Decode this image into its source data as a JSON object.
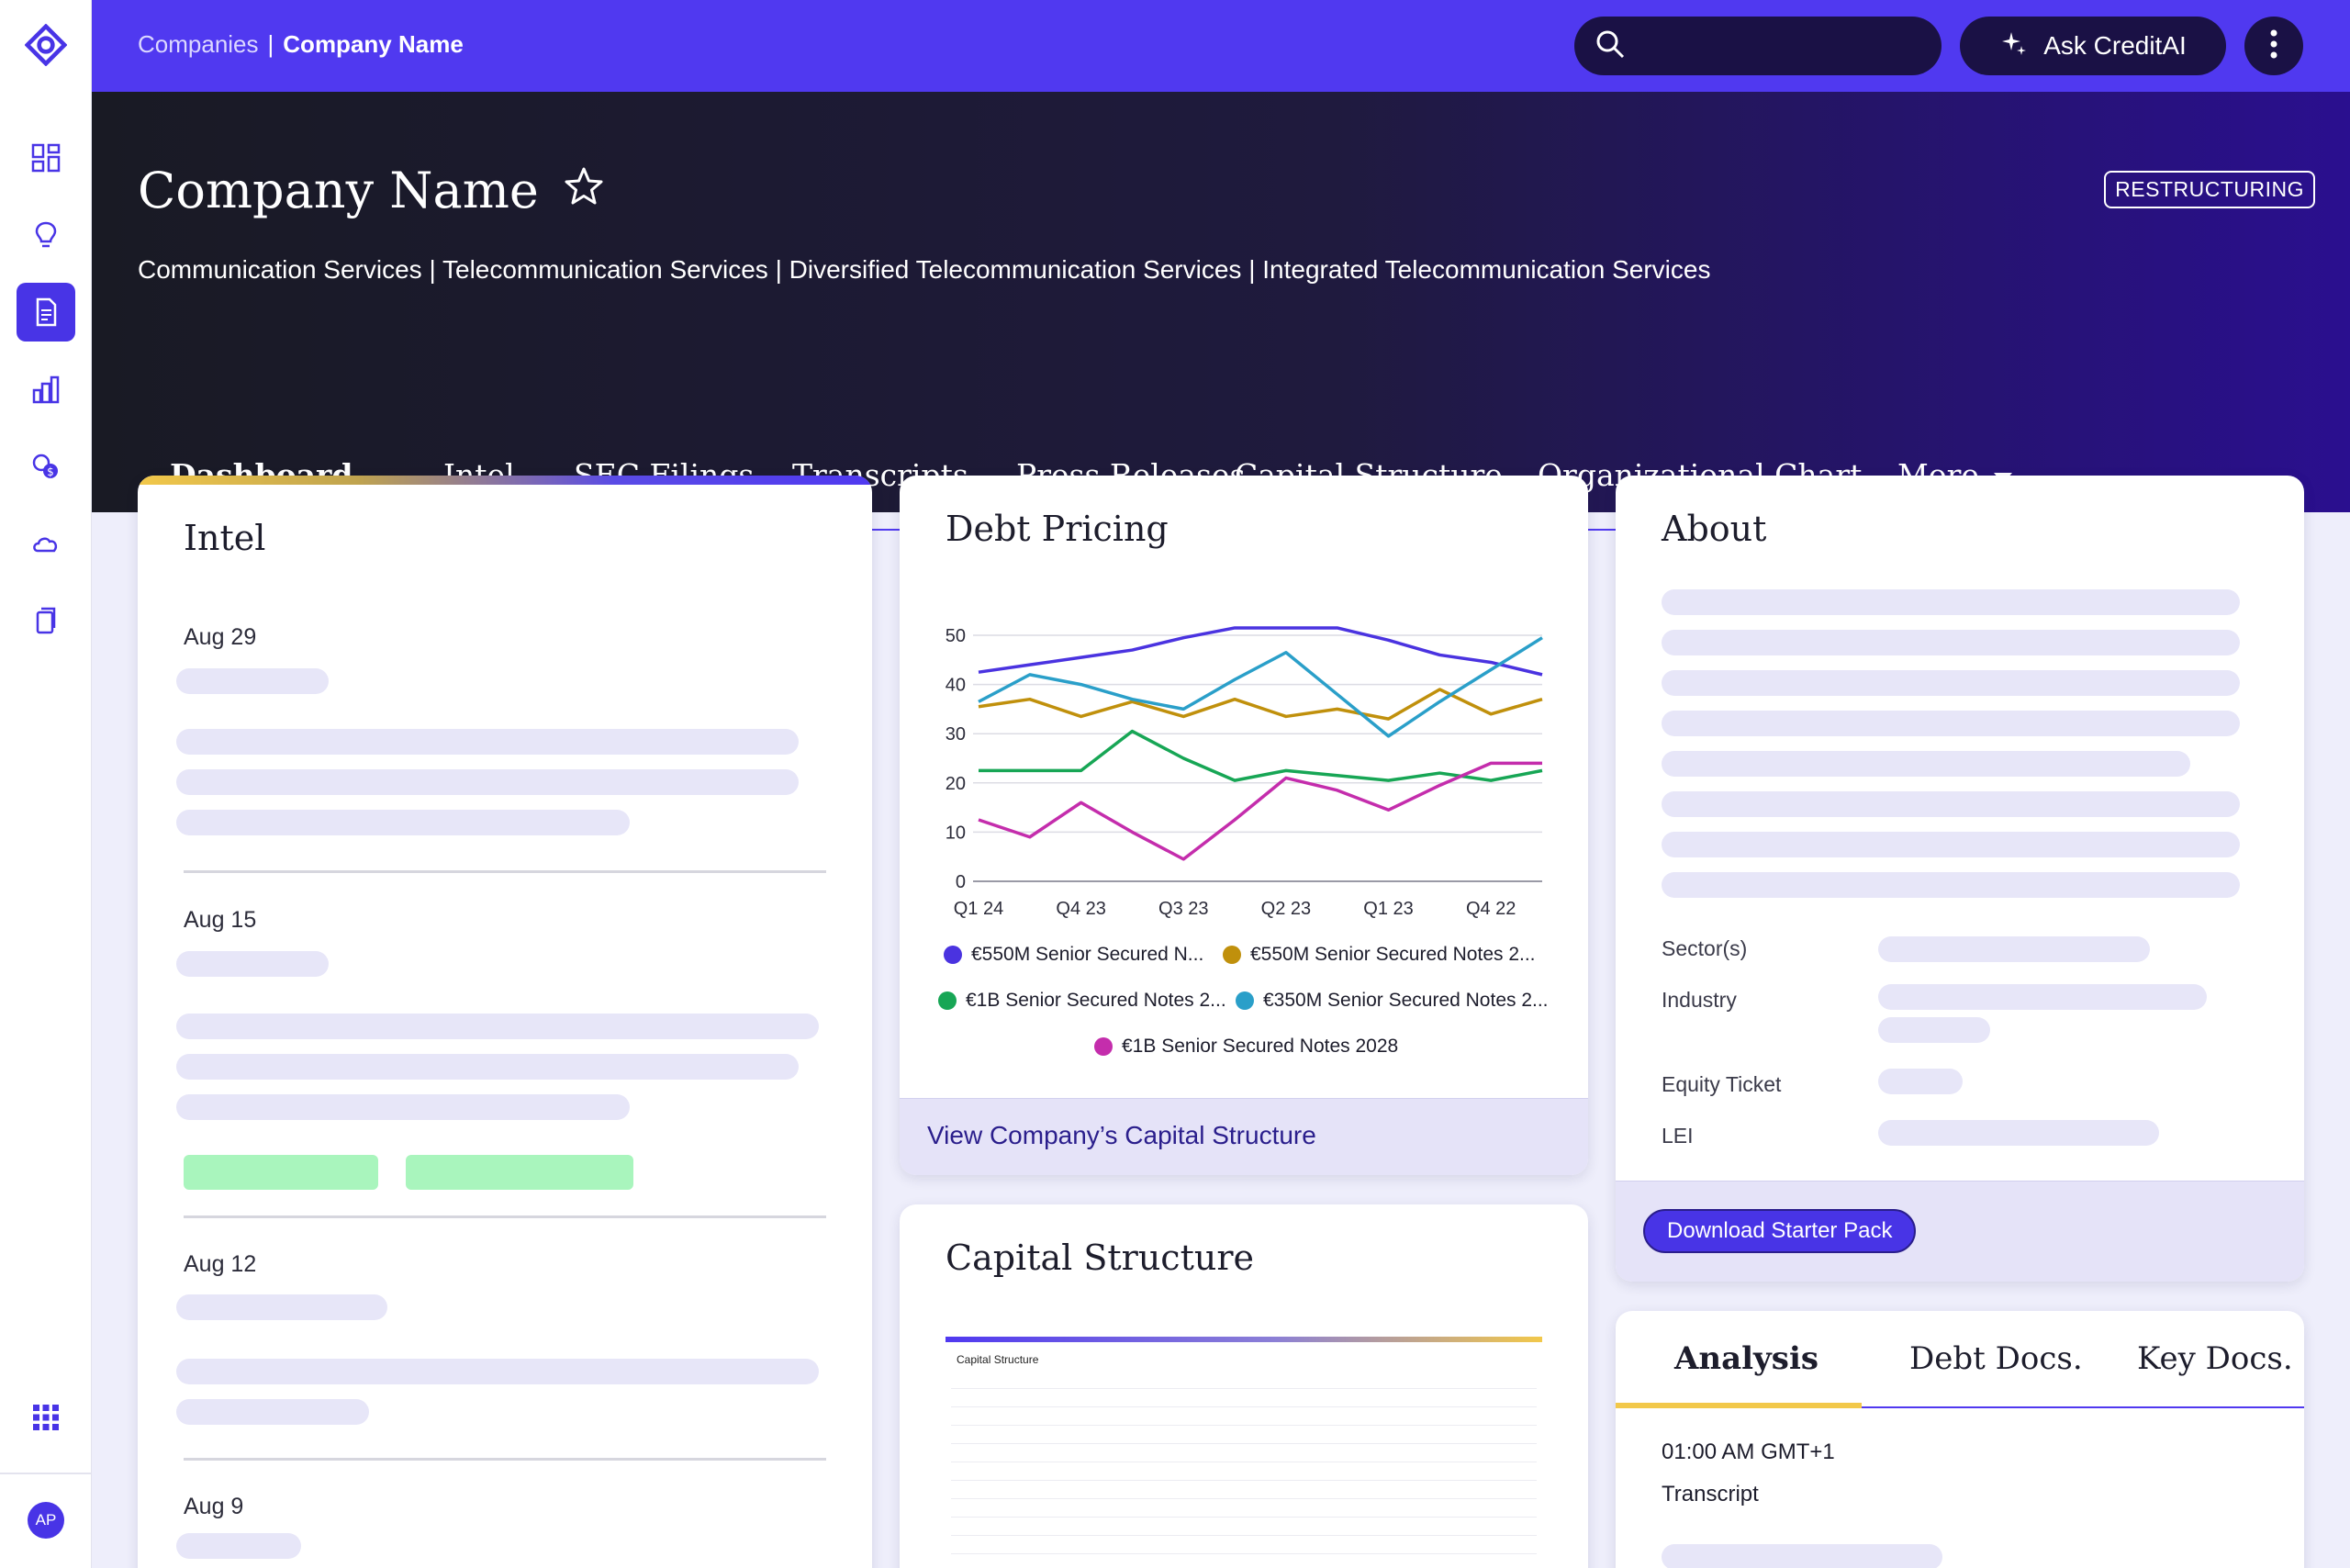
{
  "sidebar": {
    "items": [
      {
        "icon": "dashboard-grid-icon"
      },
      {
        "icon": "lightbulb-icon"
      },
      {
        "icon": "document-icon",
        "active": true
      },
      {
        "icon": "buildings-chart-icon"
      },
      {
        "icon": "coins-dollar-icon"
      },
      {
        "icon": "cloud-icon"
      },
      {
        "icon": "copy-pages-icon"
      }
    ],
    "apps_icon": "apps-grid-icon",
    "avatar_initials": "AP"
  },
  "topbar": {
    "breadcrumb_root": "Companies",
    "breadcrumb_sep": "|",
    "breadcrumb_current": "Company Name",
    "search_placeholder": "",
    "ask_label": "Ask CreditAI"
  },
  "hero": {
    "title": "Company Name",
    "badge": "RESTRUCTURING",
    "sectors": "Communication Services | Telecommunication Services | Diversified Telecommunication Services | Integrated Telecommunication Services"
  },
  "tabs": [
    "Dashboard",
    "Intel",
    "SEC Filings",
    "Transcripts",
    "Press Releases",
    "Capital Structure",
    "Organizational Chart",
    "More"
  ],
  "intel": {
    "title": "Intel",
    "dates": [
      "Aug 29",
      "Aug 15",
      "Aug 12",
      "Aug 9"
    ]
  },
  "debt_pricing": {
    "title": "Debt Pricing",
    "footer_link": "View Company’s Capital Structure"
  },
  "chart_data": {
    "type": "line",
    "title": "Debt Pricing",
    "xlabel": "",
    "ylabel": "",
    "ylim": [
      0,
      50
    ],
    "yticks": [
      0,
      10,
      20,
      30,
      40,
      50
    ],
    "x": [
      "Q1 24",
      "",
      "Q4 23",
      "",
      "Q3 23",
      "",
      "Q2 23",
      "",
      "Q1 23",
      "",
      "Q4 22",
      ""
    ],
    "xtick_labels": [
      "Q1 24",
      "Q4 23",
      "Q3 23",
      "Q2 23",
      "Q1 23",
      "Q4 22"
    ],
    "grid": true,
    "legend_position": "bottom",
    "series": [
      {
        "name": "€550M Senior Secured N...",
        "color": "#4a33e0",
        "values": [
          42.5,
          44,
          45.5,
          47,
          49.5,
          51.5,
          51.5,
          51.5,
          49,
          46,
          44.5,
          42
        ]
      },
      {
        "name": "€550M Senior Secured Notes 2...",
        "color": "#c0900c",
        "values": [
          35.5,
          37,
          33.5,
          36.5,
          33.5,
          37,
          33.5,
          35,
          33,
          39,
          34,
          37
        ]
      },
      {
        "name": "€1B Senior Secured Notes 2...",
        "color": "#17a655",
        "values": [
          22.5,
          22.5,
          22.5,
          30.5,
          25,
          20.5,
          22.5,
          21.5,
          20.5,
          22,
          20.5,
          22.5
        ]
      },
      {
        "name": "€350M Senior Secured Notes 2...",
        "color": "#2a9fc9",
        "values": [
          36.5,
          42,
          40,
          37,
          35,
          41,
          46.5,
          38,
          29.5,
          36.5,
          43,
          49.5
        ]
      },
      {
        "name": "€1B Senior Secured Notes 2028",
        "color": "#c42dac",
        "values": [
          12.5,
          9,
          16,
          10,
          4.5,
          12.5,
          21,
          18.5,
          14.5,
          19.5,
          24,
          24
        ]
      }
    ]
  },
  "capital_structure": {
    "title": "Capital Structure",
    "preview_title": "Capital Structure"
  },
  "about": {
    "title": "About",
    "labels": [
      "Sector(s)",
      "Industry",
      "Equity Ticket",
      "LEI"
    ],
    "download_label": "Download Starter Pack"
  },
  "analysis": {
    "tabs": [
      "Analysis",
      "Debt Docs.",
      "Key Docs."
    ],
    "time": "01:00 AM GMT+1",
    "type": "Transcript"
  },
  "colors": {
    "brand": "#5039f0",
    "accent": "#f2c84a",
    "skeleton": "#e7e6f8",
    "tag_green": "#a9f5bd"
  }
}
